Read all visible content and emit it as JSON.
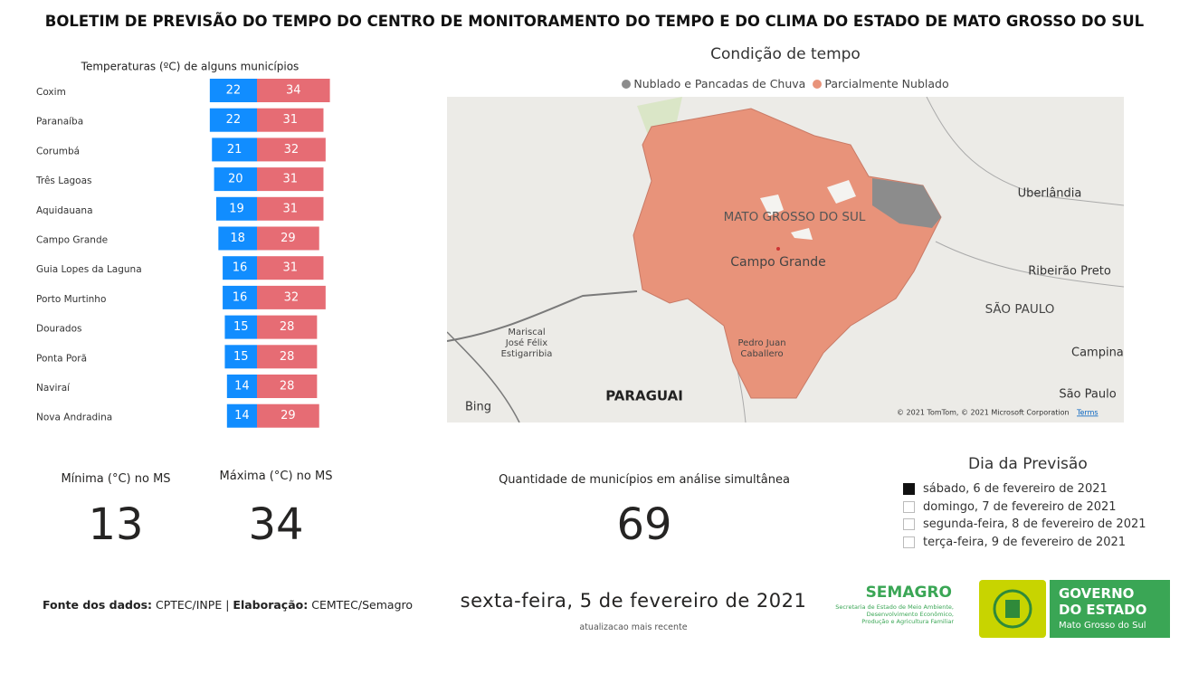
{
  "header": {
    "title": "BOLETIM DE PREVISÃO DO TEMPO DO CENTRO DE MONITORAMENTO DO TEMPO E DO CLIMA DO ESTADO DE MATO GROSSO DO SUL"
  },
  "chart_data": {
    "type": "diverging-bar",
    "title": "Temperaturas (ºC) de alguns municípios",
    "categories": [
      "Coxim",
      "Paranaíba",
      "Corumbá",
      "Três Lagoas",
      "Aquidauana",
      "Campo Grande",
      "Guia Lopes da Laguna",
      "Porto Murtinho",
      "Dourados",
      "Ponta Porã",
      "Naviraí",
      "Nova Andradina"
    ],
    "series": [
      {
        "color": "#118dff",
        "values": [
          22,
          22,
          21,
          20,
          19,
          18,
          16,
          16,
          15,
          15,
          14,
          14
        ]
      },
      {
        "color": "#e66c74",
        "values": [
          34,
          31,
          32,
          31,
          31,
          29,
          31,
          32,
          28,
          28,
          28,
          29
        ]
      }
    ]
  },
  "map": {
    "title": "Condição de tempo",
    "legend": [
      {
        "label": "Nublado e Pancadas de Chuva",
        "color": "#8c8c8c"
      },
      {
        "label": "Parcialmente Nublado",
        "color": "#e8937a"
      }
    ],
    "labels": {
      "state": "MATO GROSSO DO SUL",
      "capital": "Campo Grande",
      "uberlandia": "Uberlândia",
      "ribeirao": "Ribeirão Preto",
      "sp_state": "SÃO PAULO",
      "campinas": "Campina",
      "mariscal": [
        "Mariscal",
        "José Félix",
        "Estigarribia"
      ],
      "pedro": [
        "Pedro Juan",
        "Caballero"
      ],
      "paraguai": "PARAGUAI",
      "sp_city": "São Paulo",
      "bing": "Bing",
      "copyright": "© 2021 TomTom, © 2021 Microsoft Corporation",
      "terms": "Terms"
    }
  },
  "kpis": {
    "min": {
      "label": "Mínima (°C) no MS",
      "value": "13"
    },
    "max": {
      "label": "Máxima (°C) no MS",
      "value": "34"
    },
    "count": {
      "label": "Quantidade de municípios em análise simultânea",
      "value": "69"
    }
  },
  "slicer": {
    "title": "Dia da Previsão",
    "options": [
      {
        "label": "sábado, 6 de fevereiro de 2021",
        "checked": true
      },
      {
        "label": "domingo, 7 de fevereiro de 2021",
        "checked": false
      },
      {
        "label": "segunda-feira, 8 de fevereiro de 2021",
        "checked": false
      },
      {
        "label": "terça-feira, 9 de fevereiro de 2021",
        "checked": false
      }
    ]
  },
  "footer": {
    "source_label": "Fonte dos dados:",
    "source": "CPTEC/INPE",
    "sep": "|",
    "author_label": "Elaboração:",
    "author": "CEMTEC/Semagro",
    "date": "sexta-feira, 5 de fevereiro de 2021",
    "updated": "atualizacao mais recente"
  },
  "logos": {
    "semagro": {
      "name": "SEMAGRO",
      "lines": [
        "Secretaria de Estado de Meio Ambiente,",
        "Desenvolvimento Econômico,",
        "Produção e Agricultura Familiar"
      ]
    },
    "governo": {
      "lines": [
        "GOVERNO",
        "DO ESTADO"
      ],
      "state": "Mato Grosso do Sul"
    }
  }
}
